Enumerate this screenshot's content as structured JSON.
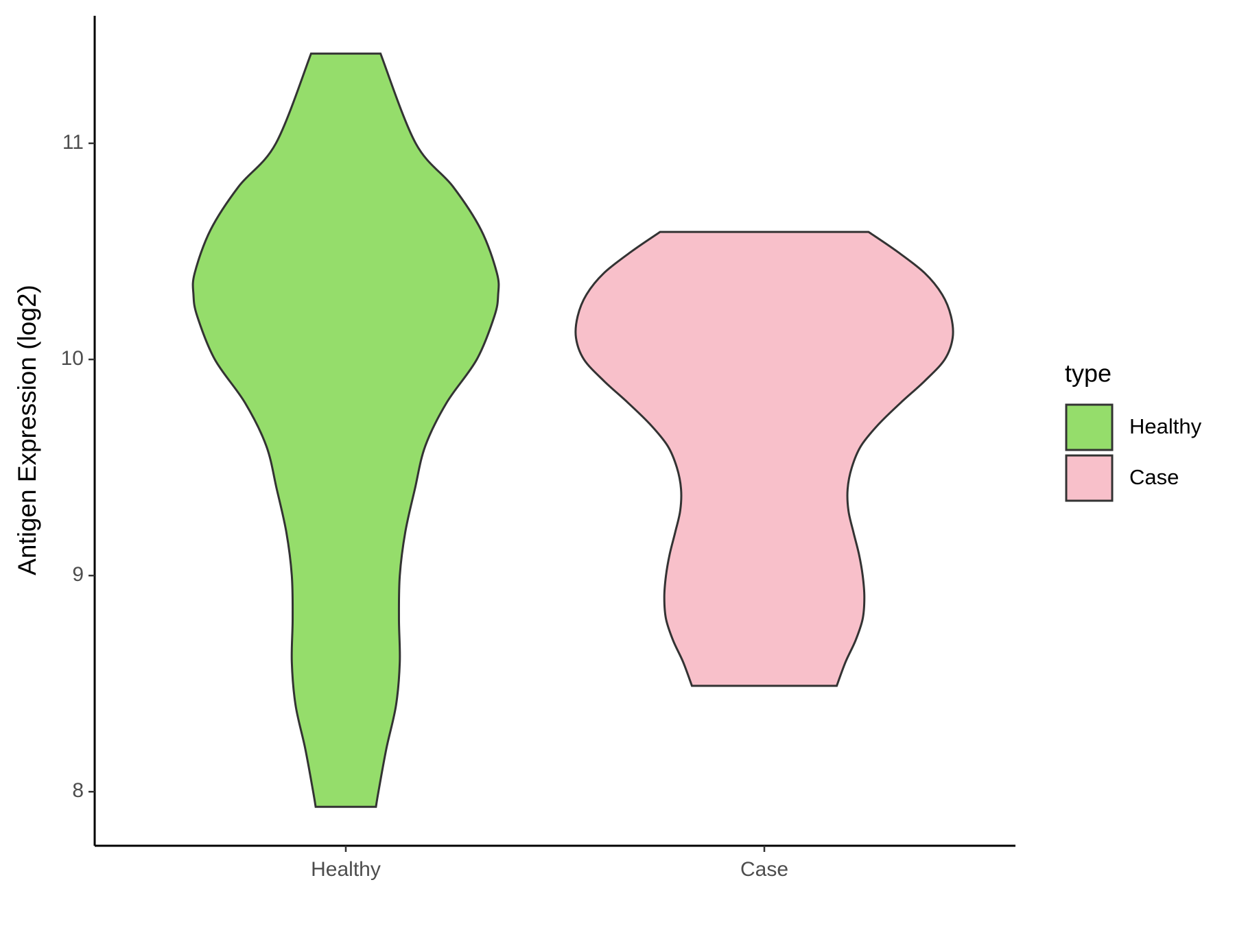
{
  "chart_data": {
    "type": "violin",
    "y_label": "Antigen Expression (log2)",
    "categories": [
      "Healthy",
      "Case"
    ],
    "ylim": [
      7.75,
      11.59
    ],
    "yticks": [
      8,
      9,
      10,
      11
    ],
    "legend_title": "type",
    "legend": "right",
    "series": [
      {
        "name": "Healthy",
        "color": "#95dd6b",
        "y": [
          11.415,
          11.0,
          10.8,
          10.6,
          10.4,
          10.3,
          10.2,
          10.0,
          9.8,
          9.6,
          9.4,
          9.2,
          9.0,
          8.8,
          8.6,
          8.4,
          8.2,
          8.0,
          7.93
        ],
        "width": [
          0.083,
          0.167,
          0.256,
          0.323,
          0.361,
          0.364,
          0.355,
          0.313,
          0.241,
          0.19,
          0.165,
          0.142,
          0.129,
          0.127,
          0.129,
          0.12,
          0.097,
          0.078,
          0.072
        ]
      },
      {
        "name": "Case",
        "color": "#f8c0ca",
        "y": [
          10.59,
          10.5,
          10.4,
          10.3,
          10.2,
          10.1,
          10.0,
          9.9,
          9.8,
          9.7,
          9.6,
          9.5,
          9.4,
          9.3,
          9.2,
          9.1,
          9.0,
          8.9,
          8.8,
          8.7,
          8.6,
          8.49
        ],
        "width": [
          0.249,
          0.317,
          0.383,
          0.425,
          0.446,
          0.45,
          0.431,
          0.383,
          0.326,
          0.273,
          0.231,
          0.209,
          0.199,
          0.201,
          0.213,
          0.226,
          0.235,
          0.239,
          0.235,
          0.218,
          0.194,
          0.173
        ]
      }
    ]
  }
}
